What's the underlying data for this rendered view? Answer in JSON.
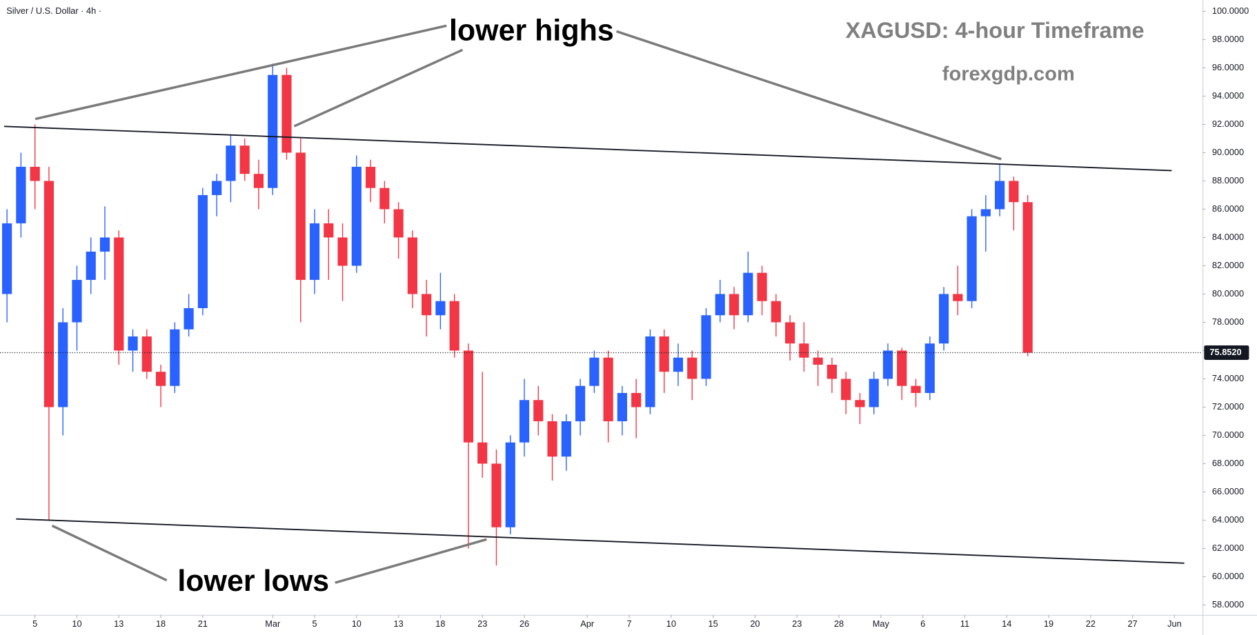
{
  "chart_data": {
    "type": "candlestick",
    "title": "Silver / U.S. Dollar · 4h ·",
    "heading": "XAGUSD: 4-hour Timeframe",
    "source": "forexgdp.com",
    "annotations": [
      "lower highs",
      "lower lows"
    ],
    "up_color": "#2962ff",
    "down_color": "#f23645",
    "line_color": "#131722",
    "grid": false,
    "xlim": [
      0,
      86
    ],
    "xticks": [
      {
        "value": 2.5,
        "label": "5"
      },
      {
        "value": 5.5,
        "label": "10"
      },
      {
        "value": 8.5,
        "label": "13"
      },
      {
        "value": 11.5,
        "label": "18"
      },
      {
        "value": 14.5,
        "label": "21"
      },
      {
        "value": 19.5,
        "label": "Mar"
      },
      {
        "value": 22.5,
        "label": "5"
      },
      {
        "value": 25.5,
        "label": "10"
      },
      {
        "value": 28.5,
        "label": "13"
      },
      {
        "value": 31.5,
        "label": "18"
      },
      {
        "value": 34.5,
        "label": "23"
      },
      {
        "value": 37.5,
        "label": "26"
      },
      {
        "value": 42,
        "label": "Apr"
      },
      {
        "value": 45,
        "label": "7"
      },
      {
        "value": 48,
        "label": "10"
      },
      {
        "value": 51,
        "label": "15"
      },
      {
        "value": 54,
        "label": "20"
      },
      {
        "value": 57,
        "label": "23"
      },
      {
        "value": 60,
        "label": "28"
      },
      {
        "value": 63,
        "label": "May"
      },
      {
        "value": 66,
        "label": "6"
      },
      {
        "value": 69,
        "label": "11"
      },
      {
        "value": 72,
        "label": "14"
      },
      {
        "value": 75,
        "label": "19"
      },
      {
        "value": 78,
        "label": "22"
      },
      {
        "value": 81,
        "label": "27"
      },
      {
        "value": 84,
        "label": "Jun"
      }
    ],
    "ylim": [
      57.3,
      100.8
    ],
    "yticks": [
      {
        "value": 58,
        "label": "58.0000"
      },
      {
        "value": 60,
        "label": "60.0000"
      },
      {
        "value": 62,
        "label": "62.0000"
      },
      {
        "value": 64,
        "label": "64.0000"
      },
      {
        "value": 66,
        "label": "66.0000"
      },
      {
        "value": 68,
        "label": "68.0000"
      },
      {
        "value": 70,
        "label": "70.0000"
      },
      {
        "value": 72,
        "label": "72.0000"
      },
      {
        "value": 74,
        "label": "74.0000"
      },
      {
        "value": 76,
        "label": "76.0000"
      },
      {
        "value": 78,
        "label": "78.0000"
      },
      {
        "value": 80,
        "label": "80.0000"
      },
      {
        "value": 82,
        "label": "82.0000"
      },
      {
        "value": 84,
        "label": "84.0000"
      },
      {
        "value": 86,
        "label": "86.0000"
      },
      {
        "value": 88,
        "label": "88.0000"
      },
      {
        "value": 90,
        "label": "90.0000"
      },
      {
        "value": 92,
        "label": "92.0000"
      },
      {
        "value": 94,
        "label": "94.0000"
      },
      {
        "value": 96,
        "label": "96.0000"
      },
      {
        "value": 98,
        "label": "98.0000"
      },
      {
        "value": 100,
        "label": "100.0000"
      }
    ],
    "last_price": {
      "value": 75.852,
      "label": "75.8520"
    },
    "open": [
      80,
      85,
      89,
      88,
      72,
      78,
      81,
      83,
      84,
      76,
      77,
      74.5,
      73.5,
      77.5,
      79,
      87,
      88,
      90.5,
      88.5,
      87.5,
      95.5,
      90,
      81,
      85,
      84,
      82,
      89,
      87.5,
      86,
      84,
      80,
      78.5,
      79.5,
      76,
      69.5,
      68,
      63.5,
      69.5,
      72.5,
      71,
      68.5,
      71,
      73.5,
      75.5,
      71,
      73,
      72,
      77,
      74.5,
      75.5,
      74,
      78.5,
      80,
      78.5,
      81.5,
      79.5,
      78,
      76.5,
      75.5,
      75,
      74,
      72.5,
      72,
      74,
      76,
      73.5,
      73,
      76.5,
      80,
      79.5,
      85.5,
      86,
      88,
      86.5
    ],
    "high": [
      86,
      90,
      92,
      89,
      79,
      82,
      84,
      86.2,
      84.5,
      77.5,
      77.5,
      75,
      78,
      80,
      87.5,
      88.5,
      91.3,
      91,
      89.5,
      96.3,
      96,
      91,
      86,
      86,
      85,
      89.8,
      89.5,
      88,
      86.5,
      84.5,
      81,
      81.5,
      80,
      76.5,
      74.5,
      69,
      70,
      74,
      73.5,
      71.5,
      71.5,
      74,
      76,
      76,
      73.5,
      74,
      77.5,
      77.5,
      76.5,
      76,
      79,
      81,
      80.5,
      83,
      82,
      80,
      78.5,
      78,
      76,
      75.5,
      74.5,
      73,
      74.5,
      76.5,
      76.2,
      74,
      77,
      80.5,
      82,
      86,
      87,
      89.2,
      88.3,
      87
    ],
    "low": [
      78,
      84,
      86,
      64,
      70,
      76,
      80,
      81,
      75,
      74.5,
      74,
      72,
      73,
      77,
      78.5,
      85.5,
      86.5,
      88,
      86,
      87,
      89.5,
      78,
      80,
      81,
      79.5,
      81.5,
      86.5,
      85,
      82.5,
      79,
      77,
      77.5,
      75.5,
      62,
      67,
      60.8,
      63,
      68.5,
      70,
      66.8,
      67.5,
      70,
      73,
      69.5,
      70,
      69.8,
      71.5,
      73,
      73.5,
      72.5,
      73.5,
      78,
      77.5,
      78,
      78.5,
      77,
      75.3,
      74.5,
      73.5,
      73,
      71.5,
      70.8,
      71.5,
      73.5,
      72.5,
      72,
      72.5,
      76,
      78.5,
      79,
      83,
      85.5,
      84.5,
      75.6
    ],
    "close": [
      85,
      89,
      88,
      72,
      78,
      81,
      83,
      84,
      76,
      77,
      74.5,
      73.5,
      77.5,
      79,
      87,
      88,
      90.5,
      88.5,
      87.5,
      95.5,
      90,
      81,
      85,
      84,
      82,
      89,
      87.5,
      86,
      84,
      80,
      78.5,
      79.5,
      76,
      69.5,
      68,
      63.5,
      69.5,
      72.5,
      71,
      68.5,
      71,
      73.5,
      75.5,
      71,
      73,
      72,
      77,
      74.5,
      75.5,
      74,
      78.5,
      80,
      78.5,
      81.5,
      79.5,
      78,
      76.5,
      75.5,
      75,
      74,
      72.5,
      72,
      74,
      76,
      73.5,
      73,
      76.5,
      80,
      79.5,
      85.5,
      86,
      88,
      86.5,
      75.852
    ],
    "trendlines": [
      {
        "x": [
          0.3,
          83.8
        ],
        "y": [
          91.86,
          88.73
        ]
      },
      {
        "x": [
          1.15,
          84.7
        ],
        "y": [
          64.09,
          60.96
        ]
      }
    ]
  }
}
